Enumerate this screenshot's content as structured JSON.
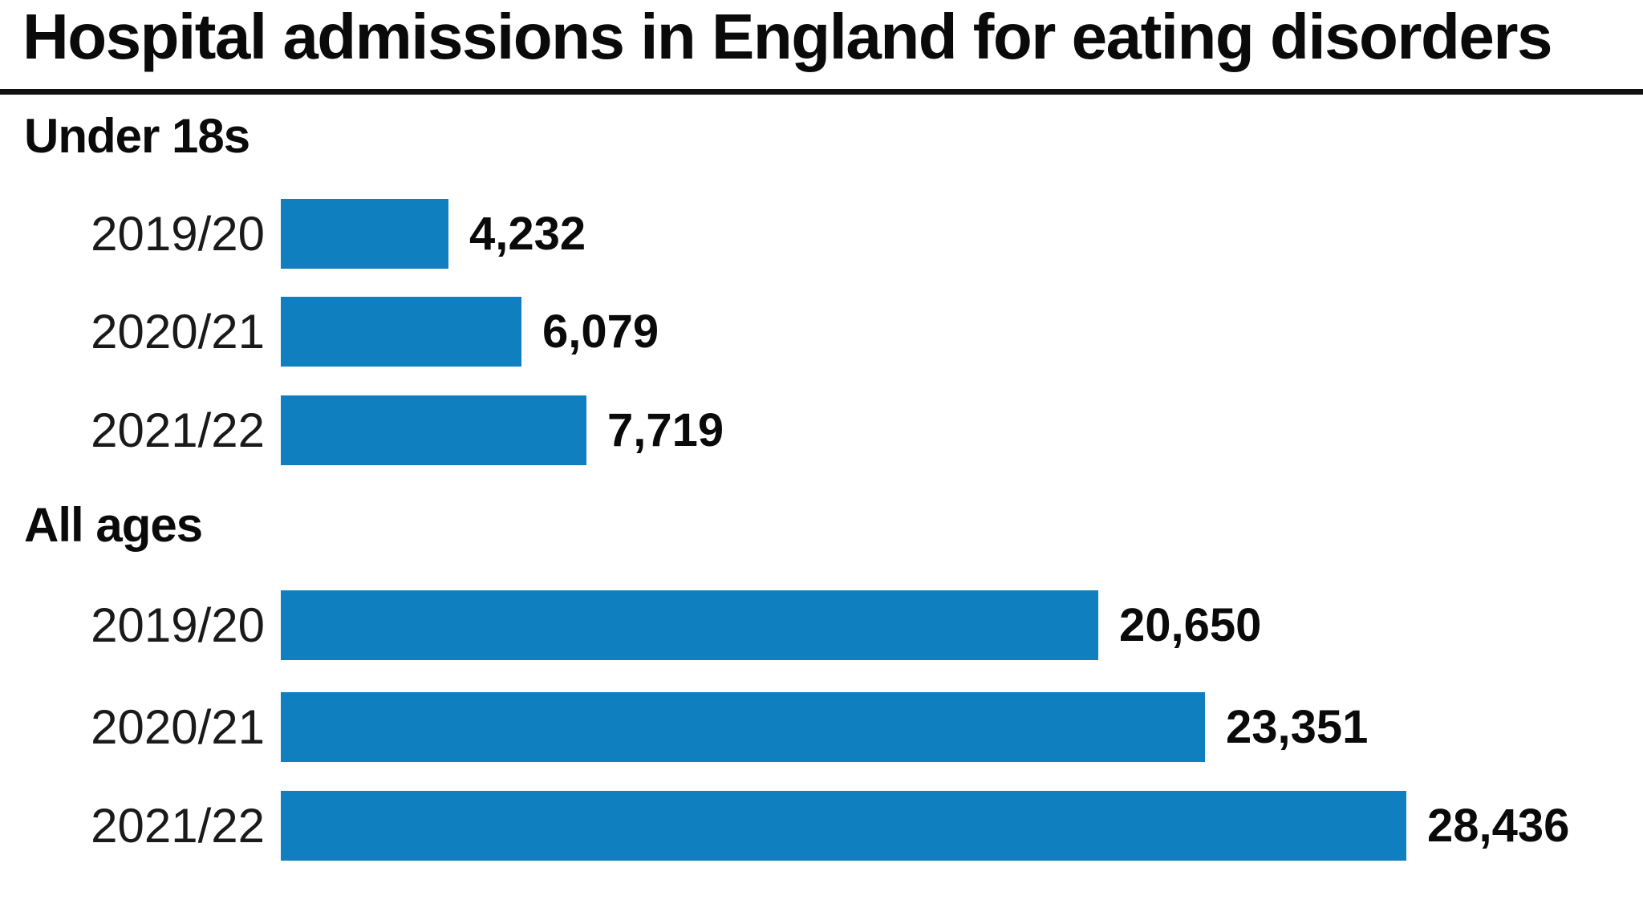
{
  "title": "Hospital admissions in England for eating disorders",
  "colors": {
    "bar": "#0f7fbf",
    "text": "#0a0a0a",
    "rule": "#111111",
    "background": "#ffffff"
  },
  "chart_data": {
    "type": "bar",
    "orientation": "horizontal",
    "title": "Hospital admissions in England for eating disorders",
    "xlabel": "",
    "ylabel": "",
    "x_axis_max": 28436,
    "grid": false,
    "legend": false,
    "value_labels_shown": true,
    "groups": [
      {
        "label": "Under 18s",
        "rows": [
          {
            "category": "2019/20",
            "value": 4232,
            "value_label": "4,232"
          },
          {
            "category": "2020/21",
            "value": 6079,
            "value_label": "6,079"
          },
          {
            "category": "2021/22",
            "value": 7719,
            "value_label": "7,719"
          }
        ]
      },
      {
        "label": "All ages",
        "rows": [
          {
            "category": "2019/20",
            "value": 20650,
            "value_label": "20,650"
          },
          {
            "category": "2020/21",
            "value": 23351,
            "value_label": "23,351"
          },
          {
            "category": "2021/22",
            "value": 28436,
            "value_label": "28,436"
          }
        ]
      }
    ]
  }
}
